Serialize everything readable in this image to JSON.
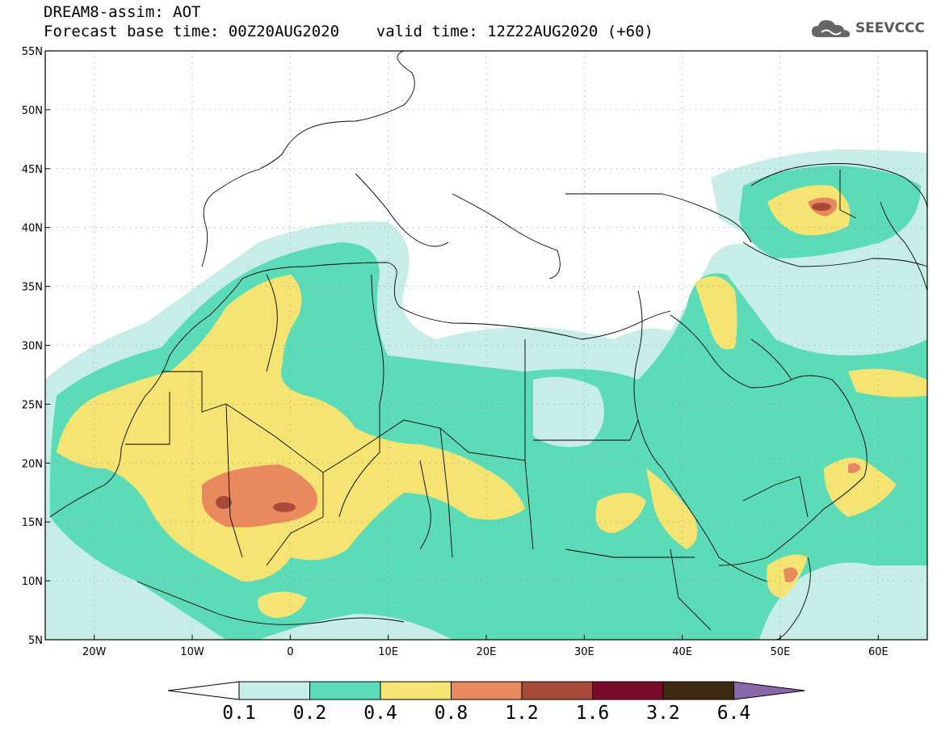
{
  "title": {
    "line1": "DREAM8-assim: AOT",
    "line2": "Forecast base time: 00Z20AUG2020    valid time: 12Z22AUG2020 (+60)"
  },
  "logo": {
    "text": "SEEVCCC",
    "icon": "cloud-logo-icon"
  },
  "map": {
    "lon_range": [
      -25,
      65
    ],
    "lat_range": [
      5,
      55
    ],
    "lat_ticks": [
      {
        "value": 55,
        "label": "55N"
      },
      {
        "value": 50,
        "label": "50N"
      },
      {
        "value": 45,
        "label": "45N"
      },
      {
        "value": 40,
        "label": "40N"
      },
      {
        "value": 35,
        "label": "35N"
      },
      {
        "value": 30,
        "label": "30N"
      },
      {
        "value": 25,
        "label": "25N"
      },
      {
        "value": 20,
        "label": "20N"
      },
      {
        "value": 15,
        "label": "15N"
      },
      {
        "value": 10,
        "label": "10N"
      },
      {
        "value": 5,
        "label": "5N"
      }
    ],
    "lon_ticks": [
      {
        "value": -20,
        "label": "20W"
      },
      {
        "value": -10,
        "label": "10W"
      },
      {
        "value": 0,
        "label": "0"
      },
      {
        "value": 10,
        "label": "10E"
      },
      {
        "value": 20,
        "label": "20E"
      },
      {
        "value": 30,
        "label": "30E"
      },
      {
        "value": 40,
        "label": "40E"
      },
      {
        "value": 50,
        "label": "50E"
      },
      {
        "value": 60,
        "label": "60E"
      }
    ],
    "gridlines": "dotted"
  },
  "colorbar": {
    "labels": [
      "0.1",
      "0.2",
      "0.4",
      "0.8",
      "1.2",
      "1.6",
      "3.2",
      "6.4"
    ],
    "colors": [
      "#ffffff",
      "#c6eee6",
      "#5cdcb6",
      "#f6e472",
      "#e88a5e",
      "#a84a3a",
      "#7a0a2a",
      "#3e2a14",
      "#8a68ac"
    ]
  },
  "field_colors": {
    "c1": "#c6eee6",
    "c2": "#5cdcb6",
    "c3": "#f6e472",
    "c4": "#e88a5e",
    "c5": "#a84a3a"
  }
}
